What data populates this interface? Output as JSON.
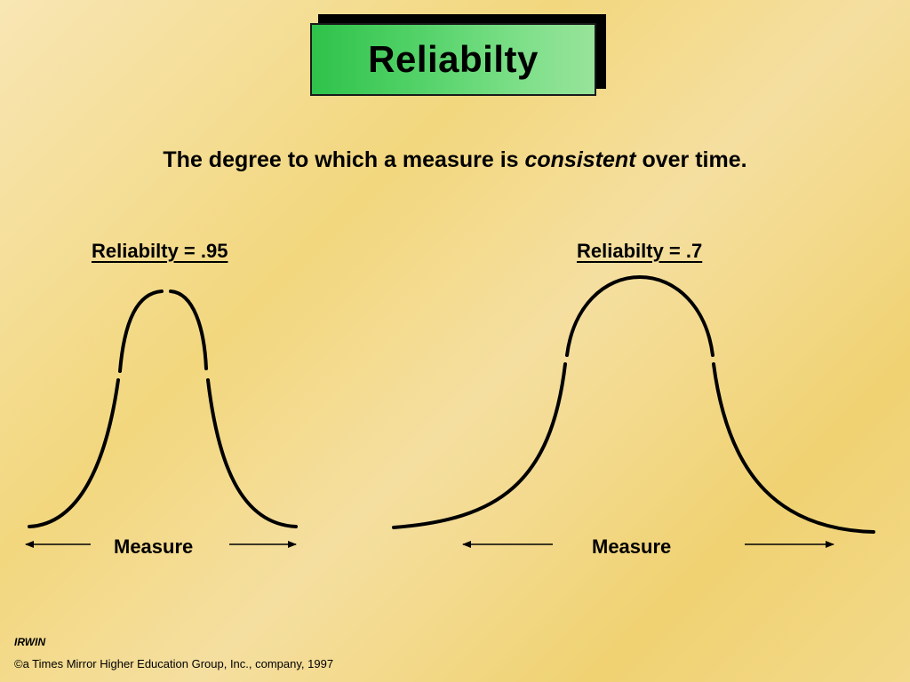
{
  "title": "Reliabilty",
  "subtitle": {
    "before": "The degree to which a measure is ",
    "emphasis": "consistent",
    "after": " over time."
  },
  "left_panel": {
    "label": "Reliabilty = .95",
    "axis_label": "Measure"
  },
  "right_panel": {
    "label": "Reliabilty = .7",
    "axis_label": "Measure"
  },
  "footer": {
    "logo_text": "IRWIN",
    "copyright": "©a Times Mirror Higher Education Group, Inc., company, 1997"
  },
  "colors": {
    "title_box": "#55d36a",
    "curve": "#000000"
  }
}
